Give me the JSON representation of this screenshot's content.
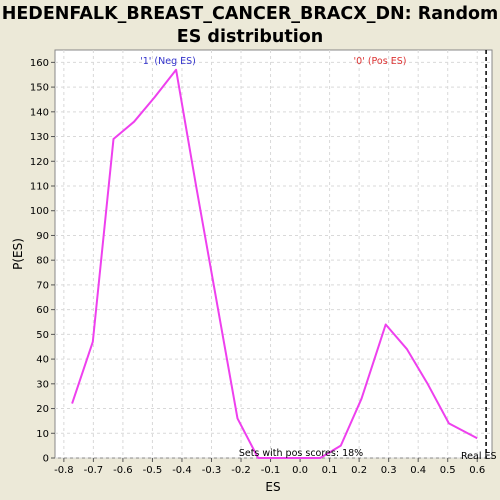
{
  "chart_data": {
    "type": "line",
    "title_line1": "HEDENFALK_BREAST_CANCER_BRACX_DN: Random",
    "title_line2": "ES distribution",
    "xlabel": "ES",
    "ylabel": "P(ES)",
    "xlim": [
      -0.83,
      0.65
    ],
    "ylim": [
      0,
      165
    ],
    "x_ticks": [
      -0.8,
      -0.7,
      -0.6,
      -0.5,
      -0.4,
      -0.3,
      -0.2,
      -0.1,
      0.0,
      0.1,
      0.2,
      0.3,
      0.4,
      0.5,
      0.6
    ],
    "x_tick_labels": [
      "-0.8",
      "-0.7",
      "-0.6",
      "-0.5",
      "-0.4",
      "-0.3",
      "-0.2",
      "-0.1",
      "0.0",
      "0.1",
      "0.2",
      "0.3",
      "0.4",
      "0.5",
      "0.6"
    ],
    "y_ticks": [
      0,
      10,
      20,
      30,
      40,
      50,
      60,
      70,
      80,
      90,
      100,
      110,
      120,
      130,
      140,
      150,
      160
    ],
    "y_tick_labels": [
      "0",
      "10",
      "20",
      "30",
      "40",
      "50",
      "60",
      "70",
      "80",
      "90",
      "100",
      "110",
      "120",
      "130",
      "140",
      "150",
      "160"
    ],
    "grid": true,
    "series": [
      {
        "color": "#ee40ee",
        "x": [
          -0.772,
          -0.702,
          -0.632,
          -0.562,
          -0.492,
          -0.42,
          -0.352,
          -0.282,
          -0.212,
          -0.142,
          -0.072,
          -0.002,
          0.068,
          0.138,
          0.208,
          0.29,
          0.362,
          0.432,
          0.504,
          0.6
        ],
        "y": [
          22,
          47,
          129,
          136,
          146,
          157,
          110,
          63,
          16,
          0,
          0,
          0,
          0,
          5,
          24,
          54,
          44,
          30,
          14,
          8
        ]
      }
    ],
    "annotations": {
      "neg_label": "'1' (Neg ES)",
      "pos_label": "'0' (Pos ES)",
      "sets_label": "Sets with pos scores: 18%",
      "real_label": "Real ES",
      "real_es_x": 0.63
    },
    "colors": {
      "background": "#ece9d8",
      "plot_bg": "#ffffff",
      "grid": "#d9d9d9",
      "line": "#ee40ee",
      "neg_label": "#3333cc",
      "pos_label": "#dd3333",
      "real_es_line": "#000000"
    }
  }
}
